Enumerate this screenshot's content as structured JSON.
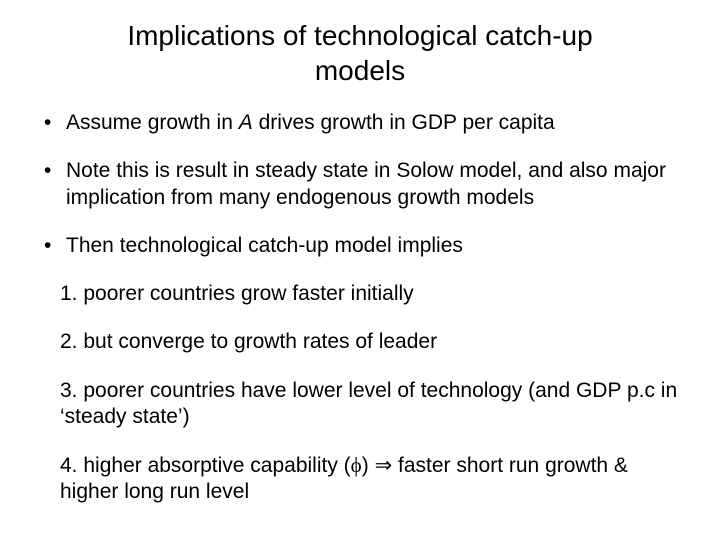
{
  "title_line1": "Implications of technological catch-up",
  "title_line2": "models",
  "bullet1_pre": "Assume growth in ",
  "bullet1_italic": "A",
  "bullet1_post": " drives growth in GDP per capita",
  "bullet2": "Note this is result in steady state in Solow model, and also major implication from many endogenous growth models",
  "bullet3": "Then technological catch-up model implies",
  "num1_n": "1. ",
  "num1_t": "poorer countries grow faster initially",
  "num2_n": "2. ",
  "num2_t": "but converge to growth rates of leader",
  "num3_n": "3. ",
  "num3_t": "poorer countries have lower level of technology (and GDP p.c in ‘steady state’)",
  "num4_n": "4. ",
  "num4_pre": "higher absorptive capability (",
  "num4_phi": "ϕ",
  "num4_mid": ") ",
  "num4_arrow": "⇒",
  "num4_post": " faster short run growth & higher long run level",
  "colors": {
    "bg": "#ffffff",
    "text": "#000000"
  },
  "fonts": {
    "title_size": 28,
    "body_size": 21
  }
}
